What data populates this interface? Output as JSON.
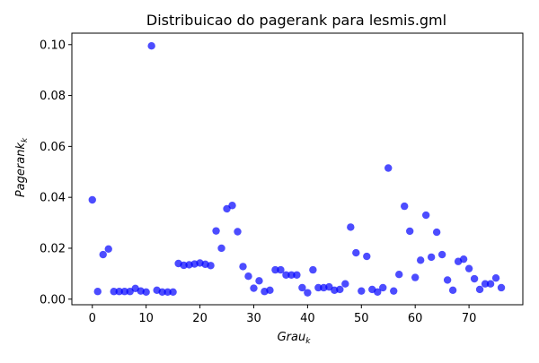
{
  "chart_data": {
    "type": "scatter",
    "title": "Distribuicao do pagerank para lesmis.gml",
    "xlabel": "Grau",
    "xlabel_sub": "k",
    "ylabel": "Pagerank",
    "ylabel_sub": "k",
    "xlim": [
      -3.8,
      80
    ],
    "ylim": [
      -0.0022,
      0.1045
    ],
    "xticks": [
      0,
      10,
      20,
      30,
      40,
      50,
      60,
      70
    ],
    "yticks": [
      0.0,
      0.02,
      0.04,
      0.06,
      0.08,
      0.1
    ],
    "ytick_labels": [
      "0.00",
      "0.02",
      "0.04",
      "0.06",
      "0.08",
      "0.10"
    ],
    "grid": false,
    "marker_color": "#0000ff",
    "marker_alpha": 0.7,
    "points": {
      "x": [
        0,
        1,
        2,
        3,
        4,
        5,
        6,
        7,
        8,
        9,
        10,
        11,
        12,
        13,
        14,
        15,
        16,
        17,
        18,
        19,
        20,
        21,
        22,
        23,
        24,
        25,
        26,
        27,
        28,
        29,
        30,
        31,
        32,
        33,
        34,
        35,
        36,
        37,
        38,
        39,
        40,
        41,
        42,
        43,
        44,
        45,
        46,
        47,
        48,
        49,
        50,
        51,
        52,
        53,
        54,
        55,
        56,
        57,
        58,
        59,
        60,
        61,
        62,
        63,
        64,
        65,
        66,
        67,
        68,
        69,
        70,
        71,
        72,
        73,
        74,
        75,
        76
      ],
      "y": [
        0.039,
        0.003,
        0.0175,
        0.0197,
        0.003,
        0.003,
        0.003,
        0.003,
        0.0042,
        0.0032,
        0.0028,
        0.0995,
        0.0035,
        0.0028,
        0.0028,
        0.0028,
        0.014,
        0.0133,
        0.0135,
        0.0138,
        0.0142,
        0.0137,
        0.0132,
        0.0268,
        0.02,
        0.0355,
        0.0368,
        0.0265,
        0.0128,
        0.009,
        0.0043,
        0.0072,
        0.003,
        0.0035,
        0.0115,
        0.0115,
        0.0095,
        0.0095,
        0.0095,
        0.0045,
        0.0025,
        0.0115,
        0.0045,
        0.0045,
        0.0048,
        0.0035,
        0.0038,
        0.006,
        0.0283,
        0.0182,
        0.0032,
        0.0168,
        0.0038,
        0.0028,
        0.0045,
        0.0515,
        0.0032,
        0.0097,
        0.0365,
        0.0267,
        0.0085,
        0.0153,
        0.033,
        0.0165,
        0.0263,
        0.0175,
        0.0075,
        0.0035,
        0.0148,
        0.0157,
        0.012,
        0.008,
        0.0038,
        0.006,
        0.006,
        0.0083,
        0.0045
      ]
    }
  }
}
